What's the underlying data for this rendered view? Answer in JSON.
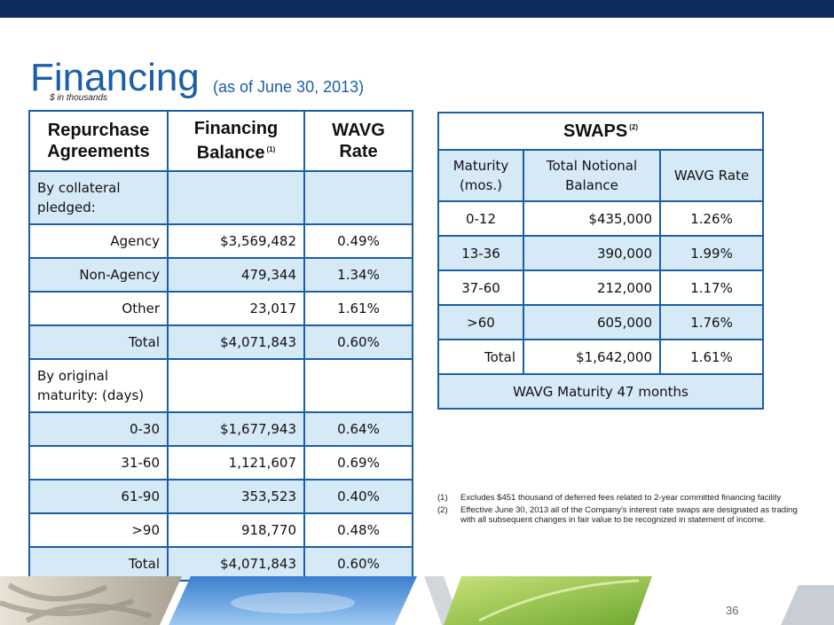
{
  "title": "Financing",
  "subtitle": "(as of June 30, 2013)",
  "units": "$ in thousands",
  "repo": {
    "headers": [
      "Repurchase Agreements",
      "Financing Balance",
      "WAVG Rate"
    ],
    "balance_sup": "(1)",
    "section1": "By collateral pledged:",
    "rows1": [
      {
        "label": "Agency",
        "balance": "$3,569,482",
        "rate": "0.49%"
      },
      {
        "label": "Non-Agency",
        "balance": "479,344",
        "rate": "1.34%"
      },
      {
        "label": "Other",
        "balance": "23,017",
        "rate": "1.61%"
      },
      {
        "label": "Total",
        "balance": "$4,071,843",
        "rate": "0.60%"
      }
    ],
    "section2": "By original maturity: (days)",
    "rows2": [
      {
        "label": "0-30",
        "balance": "$1,677,943",
        "rate": "0.64%"
      },
      {
        "label": "31-60",
        "balance": "1,121,607",
        "rate": "0.69%"
      },
      {
        "label": "61-90",
        "balance": "353,523",
        "rate": "0.40%"
      },
      {
        "label": ">90",
        "balance": "918,770",
        "rate": "0.48%"
      },
      {
        "label": "Total",
        "balance": "$4,071,843",
        "rate": "0.60%"
      }
    ]
  },
  "swaps": {
    "title": "SWAPS",
    "title_sup": "(2)",
    "headers": [
      "Maturity (mos.)",
      "Total Notional Balance",
      "WAVG Rate"
    ],
    "rows": [
      {
        "maturity": "0-12",
        "balance": "$435,000",
        "rate": "1.26%"
      },
      {
        "maturity": "13-36",
        "balance": "390,000",
        "rate": "1.99%"
      },
      {
        "maturity": "37-60",
        "balance": "212,000",
        "rate": "1.17%"
      },
      {
        "maturity": ">60",
        "balance": "605,000",
        "rate": "1.76%"
      },
      {
        "maturity": "Total",
        "balance": "$1,642,000",
        "rate": "1.61%"
      }
    ],
    "footer": "WAVG Maturity 47 months"
  },
  "notes": [
    {
      "num": "(1)",
      "text": "Excludes $451 thousand of deferred fees related to 2-year committed financing facility"
    },
    {
      "num": "(2)",
      "text": "Effective June 30, 2013 all of the Company's interest rate swaps are designated as trading with all subsequent changes in fair value to be recognized in statement of income."
    }
  ],
  "page_number": "36",
  "colors": {
    "accent": "#1a5fa8",
    "shade": "#d6e9f7",
    "topbar": "#0d2d5e"
  }
}
